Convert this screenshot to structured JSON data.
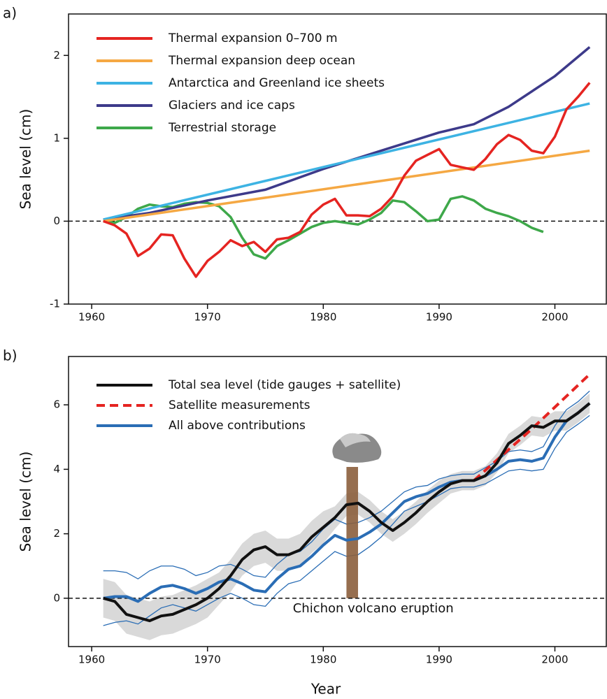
{
  "chart_data": [
    {
      "type": "line",
      "panel_label": "a)",
      "ylabel": "Sea level (cm)",
      "xlim": [
        1958,
        2004.5
      ],
      "xticks": [
        1960,
        1970,
        1980,
        1990,
        2000
      ],
      "ylim": [
        -1,
        2.5
      ],
      "yticks": [
        -1,
        0,
        1,
        2
      ],
      "hline": 0,
      "x": [
        1961,
        1962,
        1963,
        1964,
        1965,
        1966,
        1967,
        1968,
        1969,
        1970,
        1971,
        1972,
        1973,
        1974,
        1975,
        1976,
        1977,
        1978,
        1979,
        1980,
        1981,
        1982,
        1983,
        1984,
        1985,
        1986,
        1987,
        1988,
        1989,
        1990,
        1991,
        1992,
        1993,
        1994,
        1995,
        1996,
        1997,
        1998,
        1999,
        2000,
        2001,
        2002,
        2003
      ],
      "series": [
        {
          "name": "Thermal expansion 0–700 m",
          "color": "#e52421",
          "values": [
            0,
            -0.05,
            -0.15,
            -0.42,
            -0.33,
            -0.16,
            -0.17,
            -0.45,
            -0.67,
            -0.48,
            -0.37,
            -0.23,
            -0.3,
            -0.25,
            -0.37,
            -0.22,
            -0.2,
            -0.13,
            0.08,
            0.2,
            0.27,
            0.07,
            0.07,
            0.06,
            0.15,
            0.3,
            0.55,
            0.73,
            0.8,
            0.87,
            0.68,
            0.65,
            0.62,
            0.75,
            0.93,
            1.04,
            0.98,
            0.85,
            0.82,
            1.02,
            1.35,
            1.5,
            1.67
          ]
        },
        {
          "name": "Thermal expansion deep ocean",
          "color": "#f5a843",
          "x": [
            1961,
            2003
          ],
          "values": [
            0,
            0.85
          ]
        },
        {
          "name": "Antarctica and Greenland ice sheets",
          "color": "#3db3e3",
          "x": [
            1961,
            2003
          ],
          "values": [
            0.02,
            1.42
          ]
        },
        {
          "name": "Glaciers and ice caps",
          "color": "#3d3a8a",
          "x": [
            1961,
            1965,
            1970,
            1975,
            1980,
            1985,
            1990,
            1993,
            1996,
            2000,
            2003
          ],
          "values": [
            0.02,
            0.1,
            0.25,
            0.38,
            0.63,
            0.85,
            1.07,
            1.17,
            1.38,
            1.75,
            2.1
          ]
        },
        {
          "name": "Terrestrial storage",
          "color": "#3ea84a",
          "values": [
            0,
            -0.02,
            0.05,
            0.15,
            0.2,
            0.18,
            0.17,
            0.21,
            0.23,
            0.22,
            0.18,
            0.05,
            -0.2,
            -0.4,
            -0.45,
            -0.3,
            -0.23,
            -0.15,
            -0.07,
            -0.02,
            0,
            -0.02,
            -0.04,
            0.02,
            0.1,
            0.25,
            0.23,
            0.12,
            0,
            0.02,
            0.27,
            0.3,
            0.25,
            0.15,
            0.1,
            0.06,
            0,
            -0.08,
            -0.13,
            null,
            null,
            null,
            null
          ]
        }
      ]
    },
    {
      "type": "line",
      "panel_label": "b)",
      "ylabel": "Sea level (cm)",
      "xlabel": "Year",
      "xlim": [
        1958,
        2004.5
      ],
      "xticks": [
        1960,
        1970,
        1980,
        1990,
        2000
      ],
      "ylim": [
        -1.5,
        7.5
      ],
      "yticks": [
        0,
        2,
        4,
        6
      ],
      "hline": 0,
      "x": [
        1961,
        1962,
        1963,
        1964,
        1965,
        1966,
        1967,
        1968,
        1969,
        1970,
        1971,
        1972,
        1973,
        1974,
        1975,
        1976,
        1977,
        1978,
        1979,
        1980,
        1981,
        1982,
        1983,
        1984,
        1985,
        1986,
        1987,
        1988,
        1989,
        1990,
        1991,
        1992,
        1993,
        1994,
        1995,
        1996,
        1997,
        1998,
        1999,
        2000,
        2001,
        2002,
        2003
      ],
      "series": [
        {
          "name": "Total sea level (tide gauges + satellite)",
          "color": "#111111",
          "error_style": "band",
          "error_color": "#d9d9d9",
          "values": [
            0,
            -0.1,
            -0.5,
            -0.6,
            -0.7,
            -0.55,
            -0.5,
            -0.35,
            -0.2,
            0,
            0.3,
            0.7,
            1.2,
            1.5,
            1.6,
            1.35,
            1.35,
            1.5,
            1.9,
            2.2,
            2.5,
            2.9,
            2.95,
            2.7,
            2.35,
            2.1,
            2.35,
            2.65,
            3,
            3.3,
            3.55,
            3.65,
            3.65,
            3.8,
            4.2,
            4.8,
            5.05,
            5.35,
            5.3,
            5.5,
            5.5,
            5.75,
            6.05
          ],
          "error": [
            0.6,
            0.6,
            0.6,
            0.6,
            0.6,
            0.6,
            0.6,
            0.6,
            0.6,
            0.6,
            0.5,
            0.5,
            0.5,
            0.5,
            0.5,
            0.5,
            0.5,
            0.5,
            0.5,
            0.5,
            0.35,
            0.35,
            0.35,
            0.35,
            0.35,
            0.35,
            0.35,
            0.35,
            0.35,
            0.35,
            0.3,
            0.3,
            0.3,
            0.3,
            0.3,
            0.3,
            0.3,
            0.3,
            0.3,
            0.3,
            0.3,
            0.3,
            0.3
          ]
        },
        {
          "name": "Satellite measurements",
          "color": "#e52421",
          "dash": true,
          "x": [
            1993,
            1998,
            2003
          ],
          "values": [
            3.65,
            5.25,
            6.95
          ]
        },
        {
          "name": "All above contributions",
          "color": "#2a6db5",
          "error_style": "lines",
          "values": [
            0,
            0.05,
            0.05,
            -0.1,
            0.15,
            0.35,
            0.4,
            0.3,
            0.15,
            0.3,
            0.5,
            0.6,
            0.45,
            0.25,
            0.2,
            0.6,
            0.9,
            1,
            1.3,
            1.65,
            1.95,
            1.8,
            1.85,
            2.05,
            2.3,
            2.65,
            3,
            3.15,
            3.25,
            3.45,
            3.6,
            3.65,
            3.65,
            3.8,
            4,
            4.25,
            4.3,
            4.25,
            4.35,
            5,
            5.5,
            5.75,
            6.05
          ],
          "error": [
            0.85,
            0.8,
            0.75,
            0.7,
            0.7,
            0.65,
            0.6,
            0.6,
            0.55,
            0.5,
            0.5,
            0.45,
            0.45,
            0.45,
            0.45,
            0.45,
            0.45,
            0.45,
            0.45,
            0.5,
            0.5,
            0.5,
            0.5,
            0.45,
            0.4,
            0.35,
            0.3,
            0.3,
            0.25,
            0.25,
            0.2,
            0.2,
            0.2,
            0.25,
            0.25,
            0.3,
            0.3,
            0.3,
            0.35,
            0.35,
            0.35,
            0.35,
            0.38
          ]
        }
      ],
      "annotations": [
        {
          "text": "Chichon volcano eruption",
          "x": [
            1982,
            1983
          ],
          "color": "#8b5e3c"
        }
      ]
    }
  ]
}
